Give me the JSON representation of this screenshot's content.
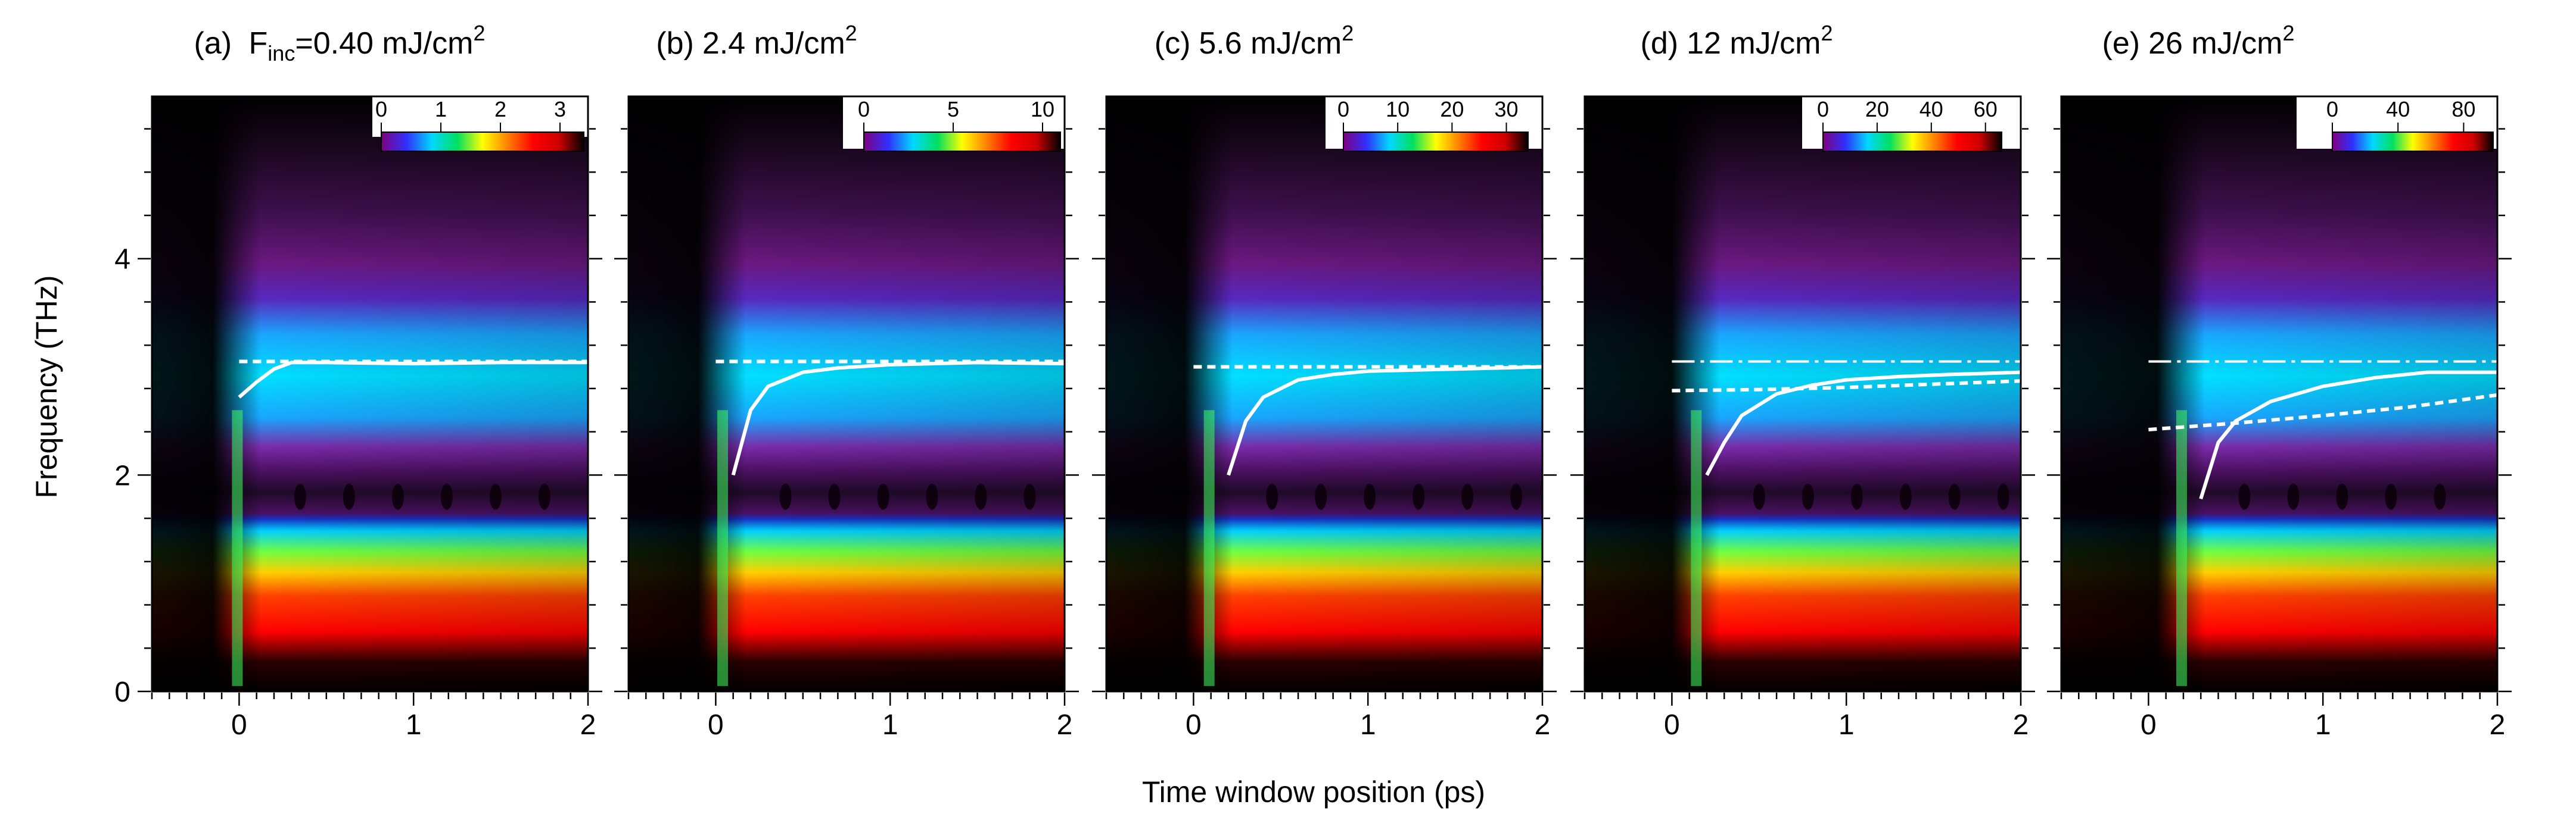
{
  "figure": {
    "ylabel": "Frequency (THz)",
    "xlabel": "Time window position (ps)"
  },
  "chart_data": [
    {
      "type": "heatmap",
      "panel": "(a)",
      "title_parts": {
        "letter": "(a)",
        "pre": "F",
        "sub": "inc",
        "mid": "=0.40 mJ/cm",
        "sup": "2"
      },
      "xlim": [
        -0.5,
        2.0
      ],
      "ylim": [
        0,
        5.5
      ],
      "x_ticks": [
        "0",
        "1",
        "2"
      ],
      "y_ticks": [
        "0",
        "2",
        "4"
      ],
      "colorbar": {
        "ticks": [
          "0",
          "1",
          "2",
          "3"
        ],
        "values": [
          0,
          1,
          2,
          3
        ],
        "max": 3.4
      },
      "onset_ps": 0.0,
      "solid_curve": {
        "x": [
          0.0,
          0.1,
          0.2,
          0.3,
          0.5,
          1.0,
          1.5,
          2.0
        ],
        "y": [
          2.72,
          2.86,
          2.98,
          3.04,
          3.04,
          3.03,
          3.04,
          3.04
        ]
      },
      "dashed_line": {
        "x": [
          0.0,
          2.0
        ],
        "y": [
          3.05,
          3.05
        ]
      }
    },
    {
      "type": "heatmap",
      "panel": "(b)",
      "title_parts": {
        "letter": "(b)",
        "pre": "",
        "sub": "",
        "mid": "2.4 mJ/cm",
        "sup": "2"
      },
      "xlim": [
        -0.5,
        2.0
      ],
      "ylim": [
        0,
        5.5
      ],
      "x_ticks": [
        "0",
        "1",
        "2"
      ],
      "y_ticks": [
        "0",
        "2",
        "4"
      ],
      "colorbar": {
        "ticks": [
          "0",
          "5",
          "10"
        ],
        "values": [
          0,
          5,
          10
        ],
        "max": 11
      },
      "onset_ps": 0.05,
      "solid_curve": {
        "x": [
          0.1,
          0.2,
          0.3,
          0.5,
          0.7,
          1.0,
          1.5,
          2.0
        ],
        "y": [
          2.0,
          2.6,
          2.82,
          2.95,
          2.99,
          3.02,
          3.04,
          3.03
        ]
      },
      "dashed_line": {
        "x": [
          0.0,
          2.0
        ],
        "y": [
          3.05,
          3.05
        ]
      }
    },
    {
      "type": "heatmap",
      "panel": "(c)",
      "title_parts": {
        "letter": "(c)",
        "pre": "",
        "sub": "",
        "mid": "5.6 mJ/cm",
        "sup": "2"
      },
      "xlim": [
        -0.5,
        2.0
      ],
      "ylim": [
        0,
        5.5
      ],
      "x_ticks": [
        "0",
        "1",
        "2"
      ],
      "y_ticks": [
        "0",
        "2",
        "4"
      ],
      "colorbar": {
        "ticks": [
          "0",
          "10",
          "20",
          "30"
        ],
        "values": [
          0,
          10,
          20,
          30
        ],
        "max": 34
      },
      "onset_ps": 0.1,
      "solid_curve": {
        "x": [
          0.2,
          0.3,
          0.4,
          0.6,
          0.8,
          1.0,
          1.5,
          2.0
        ],
        "y": [
          2.0,
          2.5,
          2.72,
          2.88,
          2.93,
          2.96,
          2.98,
          3.0
        ]
      },
      "dashed_line": {
        "x": [
          0.0,
          2.0
        ],
        "y": [
          3.0,
          3.0
        ]
      }
    },
    {
      "type": "heatmap",
      "panel": "(d)",
      "title_parts": {
        "letter": "(d)",
        "pre": "",
        "sub": "",
        "mid": "12 mJ/cm",
        "sup": "2"
      },
      "xlim": [
        -0.5,
        2.0
      ],
      "ylim": [
        0,
        5.5
      ],
      "x_ticks": [
        "0",
        "1",
        "2"
      ],
      "y_ticks": [
        "0",
        "2",
        "4"
      ],
      "colorbar": {
        "ticks": [
          "0",
          "20",
          "40",
          "60"
        ],
        "values": [
          0,
          20,
          40,
          60
        ],
        "max": 66
      },
      "onset_ps": 0.15,
      "solid_curve": {
        "x": [
          0.2,
          0.3,
          0.4,
          0.6,
          0.8,
          1.0,
          1.3,
          1.6,
          2.0
        ],
        "y": [
          2.0,
          2.3,
          2.55,
          2.75,
          2.83,
          2.88,
          2.91,
          2.93,
          2.95
        ]
      },
      "dashed_line": {
        "x": [
          0.0,
          0.5,
          1.0,
          1.5,
          2.0
        ],
        "y": [
          2.78,
          2.79,
          2.81,
          2.84,
          2.87
        ]
      },
      "dashdot_line": {
        "x": [
          0.0,
          2.0
        ],
        "y": [
          3.05,
          3.05
        ]
      }
    },
    {
      "type": "heatmap",
      "panel": "(e)",
      "title_parts": {
        "letter": "(e)",
        "pre": "",
        "sub": "",
        "mid": "26 mJ/cm",
        "sup": "2"
      },
      "xlim": [
        -0.5,
        2.0
      ],
      "ylim": [
        0,
        5.5
      ],
      "x_ticks": [
        "0",
        "1",
        "2"
      ],
      "y_ticks": [
        "0",
        "2",
        "4"
      ],
      "colorbar": {
        "ticks": [
          "0",
          "40",
          "80"
        ],
        "values": [
          0,
          40,
          80
        ],
        "max": 98
      },
      "onset_ps": 0.2,
      "solid_curve": {
        "x": [
          0.3,
          0.4,
          0.5,
          0.7,
          1.0,
          1.3,
          1.6,
          2.0
        ],
        "y": [
          1.78,
          2.3,
          2.5,
          2.68,
          2.82,
          2.9,
          2.95,
          2.95
        ]
      },
      "dashed_line": {
        "x": [
          0.0,
          0.5,
          1.0,
          1.5,
          2.0
        ],
        "y": [
          2.42,
          2.48,
          2.55,
          2.63,
          2.74
        ]
      },
      "dashdot_line": {
        "x": [
          0.0,
          2.0
        ],
        "y": [
          3.05,
          3.05
        ]
      }
    }
  ]
}
